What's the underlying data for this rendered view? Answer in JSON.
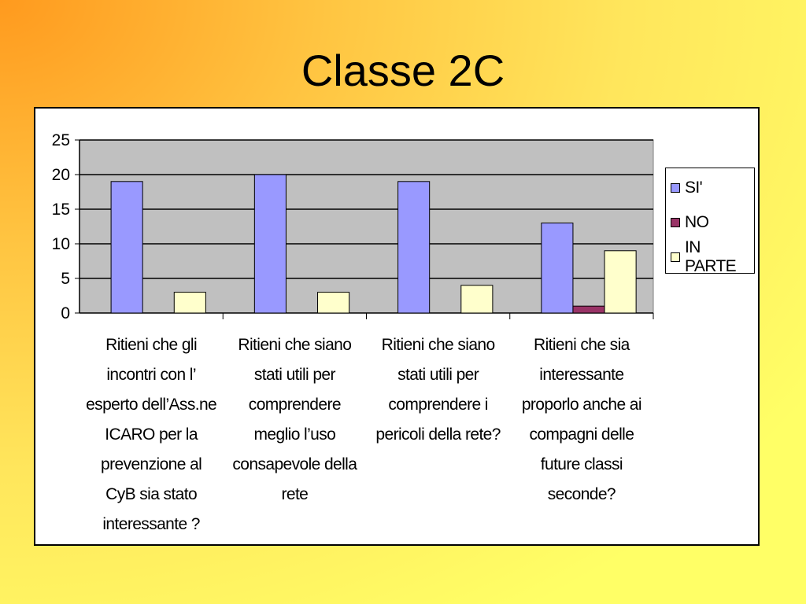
{
  "slide": {
    "title": "Classe 2C"
  },
  "chart_data": {
    "type": "bar",
    "title": "",
    "xlabel": "",
    "ylabel": "",
    "ylim": [
      0,
      25
    ],
    "yticks": [
      "0",
      "5",
      "10",
      "15",
      "20",
      "25"
    ],
    "grid": true,
    "legend_position": "right",
    "categories": [
      "Ritieni che gli\nincontri con l’\nesperto dell’Ass.ne\nICARO  per la\nprevenzione al\nCyB sia stato\ninteressante ?",
      "Ritieni che siano\nstati utili per\ncomprendere\nmeglio l’uso\nconsapevole della\nrete",
      "Ritieni che siano\nstati utili per\ncomprendere  i\npericoli  della rete?",
      "Ritieni che sia\ninteressante\nproporlo anche ai\ncompagni delle\nfuture classi\nseconde?"
    ],
    "series": [
      {
        "name": "SI'",
        "color": "#9999ff",
        "values": [
          19,
          20,
          19,
          13
        ]
      },
      {
        "name": "NO",
        "color": "#993366",
        "values": [
          0,
          0,
          0,
          1
        ]
      },
      {
        "name": "IN PARTE",
        "color": "#ffffcc",
        "values": [
          3,
          3,
          4,
          9
        ]
      }
    ],
    "colors": {
      "plot_background": "#c0c0c0",
      "gridline": "#000000"
    }
  }
}
